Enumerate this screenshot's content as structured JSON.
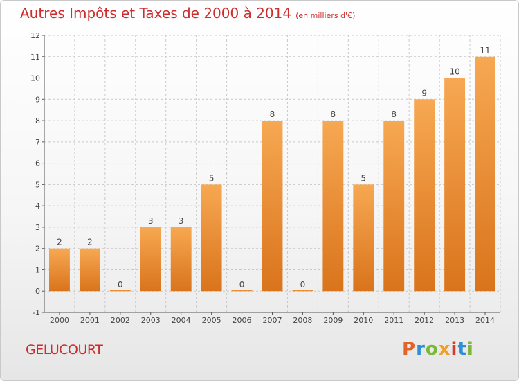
{
  "chart_data": {
    "type": "bar",
    "title": "Autres Impôts et Taxes de 2000 à 2014",
    "subtitle": "(en milliers d'€)",
    "categories": [
      "2000",
      "2001",
      "2002",
      "2003",
      "2004",
      "2005",
      "2006",
      "2007",
      "2008",
      "2009",
      "2010",
      "2011",
      "2012",
      "2013",
      "2014"
    ],
    "values": [
      2,
      2,
      0,
      3,
      3,
      5,
      0,
      8,
      0,
      8,
      5,
      8,
      9,
      10,
      11
    ],
    "ylim": [
      -1,
      12
    ],
    "yticks": [
      -1,
      0,
      1,
      2,
      3,
      4,
      5,
      6,
      7,
      8,
      9,
      10,
      11,
      12
    ],
    "xlabel": "",
    "ylabel": "",
    "grid": true,
    "legend": "none"
  },
  "footer": {
    "location": "GELUCOURT",
    "logo": "Proxiti"
  },
  "colors": {
    "title": "#cc2d2d",
    "bar_top": "#f7a852",
    "bar_bottom": "#d9741c",
    "grid": "#c8c8c8",
    "axis": "#555555",
    "logo_letters": [
      "#e0642a",
      "#2f8fd6",
      "#7ab83a",
      "#f2a01e",
      "#d93b2b",
      "#2f8fd6",
      "#7ab83a"
    ]
  }
}
